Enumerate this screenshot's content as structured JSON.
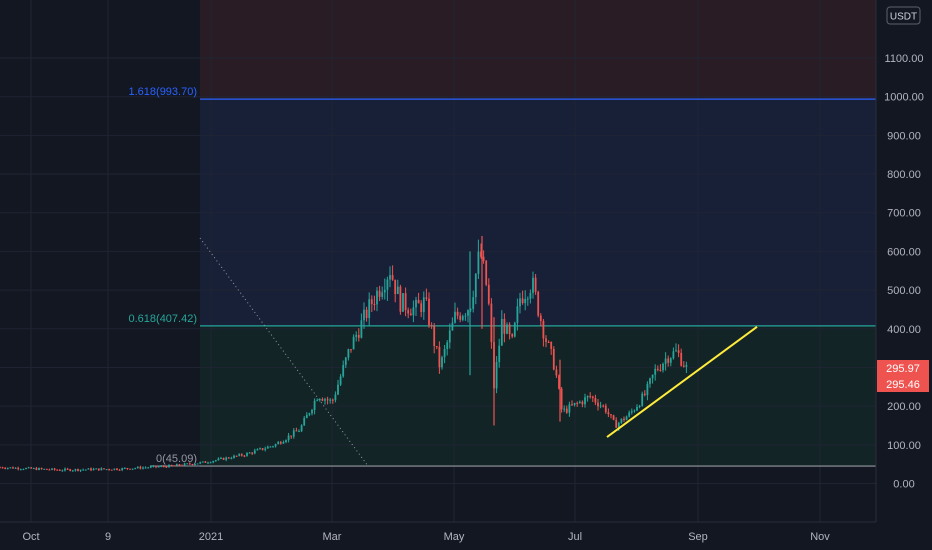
{
  "chart_data": {
    "type": "candlestick",
    "currency": "USDT",
    "y_ticks": [
      "1100.00",
      "1000.00",
      "900.00",
      "800.00",
      "700.00",
      "600.00",
      "500.00",
      "400.00",
      "300.00",
      "200.00",
      "100.00",
      "0.00"
    ],
    "y_tick_values": [
      1100,
      1000,
      900,
      800,
      700,
      600,
      500,
      400,
      300,
      200,
      100,
      0
    ],
    "ylim": [
      -70,
      1250
    ],
    "x_ticks": [
      "Oct",
      "9",
      "2021",
      "Mar",
      "May",
      "Jul",
      "Sep",
      "Nov"
    ],
    "fib_levels": [
      {
        "label": "1.618(993.70)",
        "value": 993.7,
        "color": "#2962ff"
      },
      {
        "label": "0.618(407.42)",
        "value": 407.42,
        "color": "#26a69a"
      },
      {
        "label": "0(45.09)",
        "value": 45.09,
        "color": "#9598a1"
      }
    ],
    "price_badges": [
      {
        "label": "295.97",
        "value": 295.97,
        "color": "#ef5350"
      },
      {
        "label": "295.46",
        "value": 295.46,
        "color": "#ef5350"
      }
    ],
    "trendline": {
      "color": "#ffeb3b",
      "from": 120,
      "to": 405
    },
    "key_prices": [
      {
        "date": "Oct",
        "price": 40
      },
      {
        "date": "2021",
        "price": 55
      },
      {
        "date": "Mar",
        "price": 230
      },
      {
        "date": "Mar",
        "price": 555
      },
      {
        "date": "May",
        "price": 300
      },
      {
        "date": "May",
        "price": 615
      },
      {
        "date": "May",
        "price": 160
      },
      {
        "date": "Jul",
        "price": 180
      },
      {
        "date": "Aug",
        "price": 150
      },
      {
        "date": "Aug",
        "price": 340
      },
      {
        "date": "Aug",
        "price": 296
      }
    ],
    "colors": {
      "up": "#26a69a",
      "down": "#ef5350",
      "background": "#131722"
    }
  }
}
